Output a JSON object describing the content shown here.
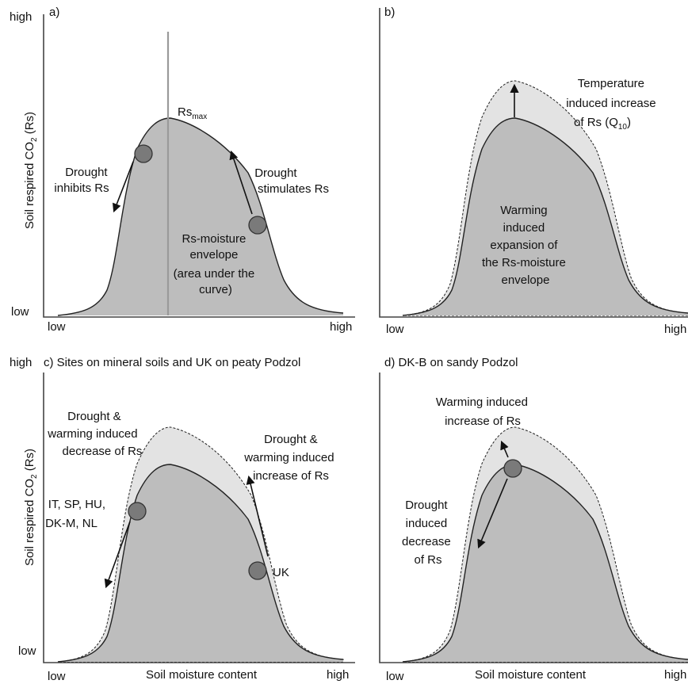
{
  "panels": {
    "a": {
      "letter": "a)",
      "y_high": "high",
      "y_low": "low",
      "x_low": "low",
      "x_high": "high",
      "rs_max": "Rs",
      "rs_max_sub": "max",
      "drought_inhibits": [
        "Drought",
        "inhibits Rs"
      ],
      "drought_stimulates": [
        "Drought",
        "stimulates Rs"
      ],
      "envelope": [
        "Rs-moisture",
        "envelope",
        "(area under the",
        "curve)"
      ]
    },
    "b": {
      "letter": "b)",
      "x_low": "low",
      "x_high": "high",
      "temp_line1": "Temperature",
      "temp_line2": "induced increase",
      "temp_line3_pre": "of Rs (Q",
      "temp_line3_sub": "10",
      "temp_line3_post": ")",
      "warming": [
        "Warming",
        "induced",
        "expansion of",
        "the Rs-moisture",
        "envelope"
      ]
    },
    "c": {
      "title": "c) Sites on mineral  soils and UK on peaty Podzol",
      "y_high": "high",
      "y_low": "low",
      "x_low": "low",
      "x_mid": "Soil moisture content",
      "x_high": "high",
      "decrease": [
        "Drought  &",
        "warming induced",
        "decrease of Rs"
      ],
      "increase": [
        "Drought  &",
        "warming induced",
        "increase of Rs"
      ],
      "sites": [
        "IT,  SP, HU,",
        "DK-M,  NL"
      ],
      "uk": "UK"
    },
    "d": {
      "title": "d) DK-B on sandy Podzol",
      "x_low": "low",
      "x_mid": "Soil moisture content",
      "x_high": "high",
      "warming": [
        "Warming induced",
        "increase of Rs"
      ],
      "drought": [
        "Drought",
        "induced",
        "decrease",
        "of Rs"
      ]
    }
  },
  "y_axis_label_pre": "Soil respired CO",
  "y_axis_label_sub": "2",
  "y_axis_label_post": " (Rs)",
  "colors": {
    "envelope_fill": "#bdbdbd",
    "expanded_fill": "#e3e3e3",
    "dot_fill": "#7a7a7a",
    "vertical_line": "#9a9a9a"
  }
}
